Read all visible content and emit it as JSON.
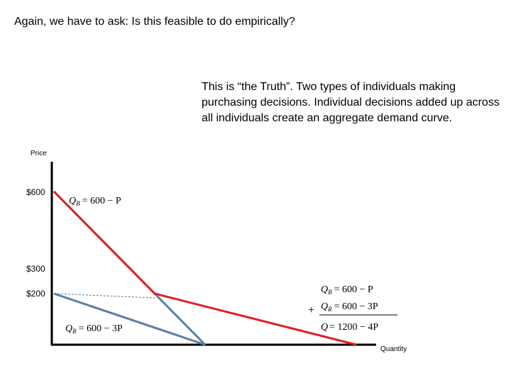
{
  "slide": {
    "title": "Again, we have to ask:  Is this feasible to do empirically?",
    "note": "This is “the Truth”.  Two types of individuals making purchasing decisions.  Individual decisions added up across all individuals create an aggregate demand curve."
  },
  "chart_data": {
    "type": "line",
    "xlabel": "Quantity",
    "ylabel": "Price",
    "y_ticks": [
      "$600",
      "$300",
      "$200"
    ],
    "colors": {
      "individual": "#5b7fa6",
      "aggregate": "#e02020",
      "guide": "#5b7fa6",
      "axis": "#000000"
    },
    "series": [
      {
        "points": [
          [
            0,
            600
          ],
          [
            600,
            0
          ]
        ],
        "color_key": "individual"
      },
      {
        "points": [
          [
            0,
            200
          ],
          [
            600,
            0
          ]
        ],
        "color_key": "individual"
      },
      {
        "points": [
          [
            0,
            600
          ],
          [
            400,
            200
          ],
          [
            1200,
            0
          ]
        ],
        "color_key": "aggregate"
      }
    ],
    "guide_y": 200,
    "curve_labels": {
      "b_curve": {
        "lhs": "Q",
        "sub": "B",
        "rhs": "= 600 − P"
      },
      "r_curve": {
        "lhs": "Q",
        "sub": "R",
        "rhs": "= 600 − 3P"
      }
    },
    "sum_box": {
      "plus": "+",
      "line1": {
        "lhs": "Q",
        "sub": "B",
        "rhs": "= 600 − P"
      },
      "line2": {
        "lhs": "Q",
        "sub": "R",
        "rhs": "= 600 − 3P"
      },
      "total": {
        "lhs": "Q",
        "rhs": "= 1200 − 4P"
      }
    }
  }
}
